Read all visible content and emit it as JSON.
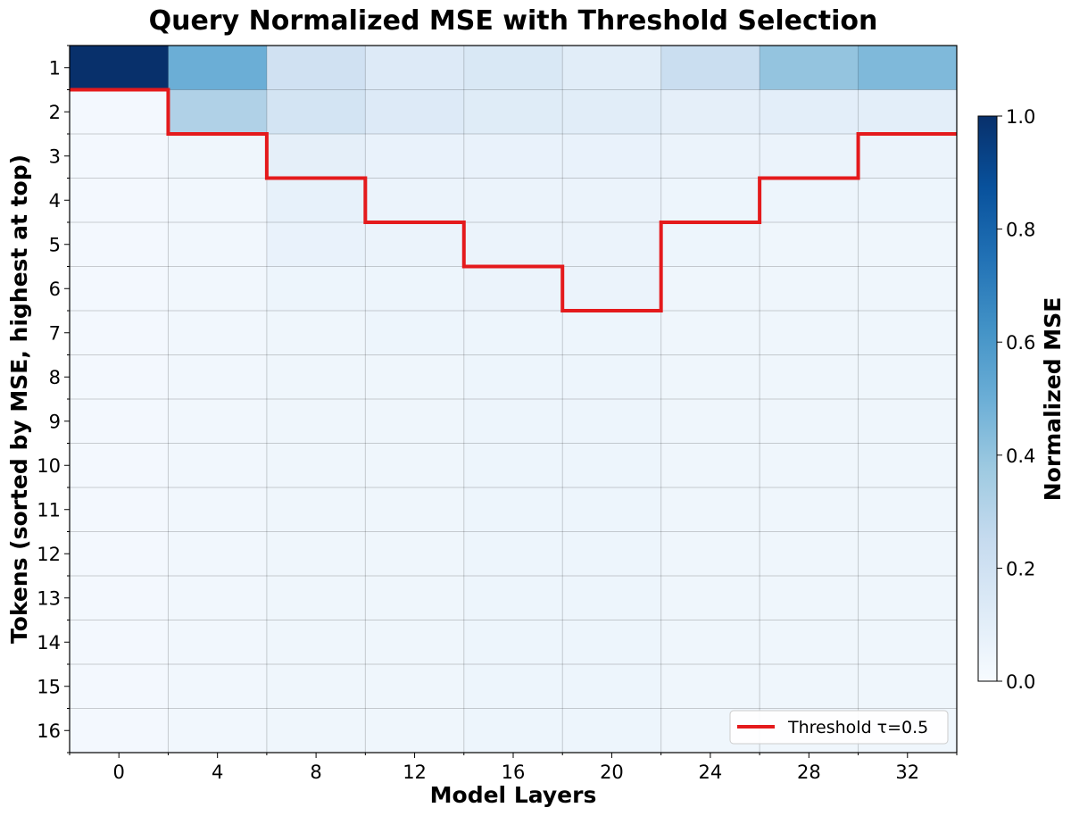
{
  "chart_data": {
    "type": "heatmap",
    "title": "Query Normalized MSE with Threshold Selection",
    "xlabel": "Model Layers",
    "ylabel": "Tokens (sorted by MSE, highest at top)",
    "x_ticks": [
      "0",
      "4",
      "8",
      "12",
      "16",
      "20",
      "24",
      "28",
      "32"
    ],
    "y_ticks": [
      "1",
      "2",
      "3",
      "4",
      "5",
      "6",
      "7",
      "8",
      "9",
      "10",
      "11",
      "12",
      "13",
      "14",
      "15",
      "16"
    ],
    "colormap": "Blues",
    "colorbar": {
      "label": "Normalized MSE",
      "range": [
        0.0,
        1.0
      ],
      "ticks": [
        "0.0",
        "0.2",
        "0.4",
        "0.6",
        "0.8",
        "1.0"
      ]
    },
    "values": [
      [
        1.0,
        0.5,
        0.2,
        0.13,
        0.15,
        0.11,
        0.23,
        0.4,
        0.45
      ],
      [
        0.02,
        0.32,
        0.18,
        0.13,
        0.12,
        0.11,
        0.09,
        0.1,
        0.1
      ],
      [
        0.02,
        0.04,
        0.09,
        0.07,
        0.07,
        0.07,
        0.06,
        0.06,
        0.06
      ],
      [
        0.02,
        0.03,
        0.08,
        0.06,
        0.06,
        0.06,
        0.05,
        0.05,
        0.05
      ],
      [
        0.02,
        0.03,
        0.07,
        0.06,
        0.06,
        0.06,
        0.05,
        0.04,
        0.04
      ],
      [
        0.02,
        0.03,
        0.05,
        0.05,
        0.06,
        0.06,
        0.04,
        0.04,
        0.04
      ],
      [
        0.02,
        0.03,
        0.04,
        0.05,
        0.05,
        0.05,
        0.04,
        0.04,
        0.04
      ],
      [
        0.02,
        0.03,
        0.04,
        0.04,
        0.05,
        0.05,
        0.04,
        0.04,
        0.04
      ],
      [
        0.02,
        0.03,
        0.04,
        0.04,
        0.05,
        0.05,
        0.04,
        0.04,
        0.04
      ],
      [
        0.02,
        0.03,
        0.04,
        0.04,
        0.05,
        0.05,
        0.04,
        0.04,
        0.04
      ],
      [
        0.02,
        0.03,
        0.04,
        0.04,
        0.05,
        0.05,
        0.04,
        0.04,
        0.04
      ],
      [
        0.02,
        0.03,
        0.04,
        0.04,
        0.05,
        0.05,
        0.04,
        0.04,
        0.04
      ],
      [
        0.02,
        0.03,
        0.04,
        0.04,
        0.05,
        0.05,
        0.04,
        0.04,
        0.04
      ],
      [
        0.02,
        0.03,
        0.04,
        0.04,
        0.05,
        0.05,
        0.04,
        0.04,
        0.04
      ],
      [
        0.02,
        0.03,
        0.04,
        0.04,
        0.05,
        0.05,
        0.04,
        0.04,
        0.04
      ],
      [
        0.02,
        0.03,
        0.04,
        0.04,
        0.05,
        0.05,
        0.04,
        0.04,
        0.04
      ]
    ],
    "threshold": {
      "name": "Threshold τ=0.5",
      "color": "#e41a1c",
      "tokens_selected_per_layer": [
        1,
        2,
        3,
        4,
        5,
        6,
        4,
        3,
        2
      ]
    },
    "legend_position": "lower-right",
    "grid": true
  }
}
